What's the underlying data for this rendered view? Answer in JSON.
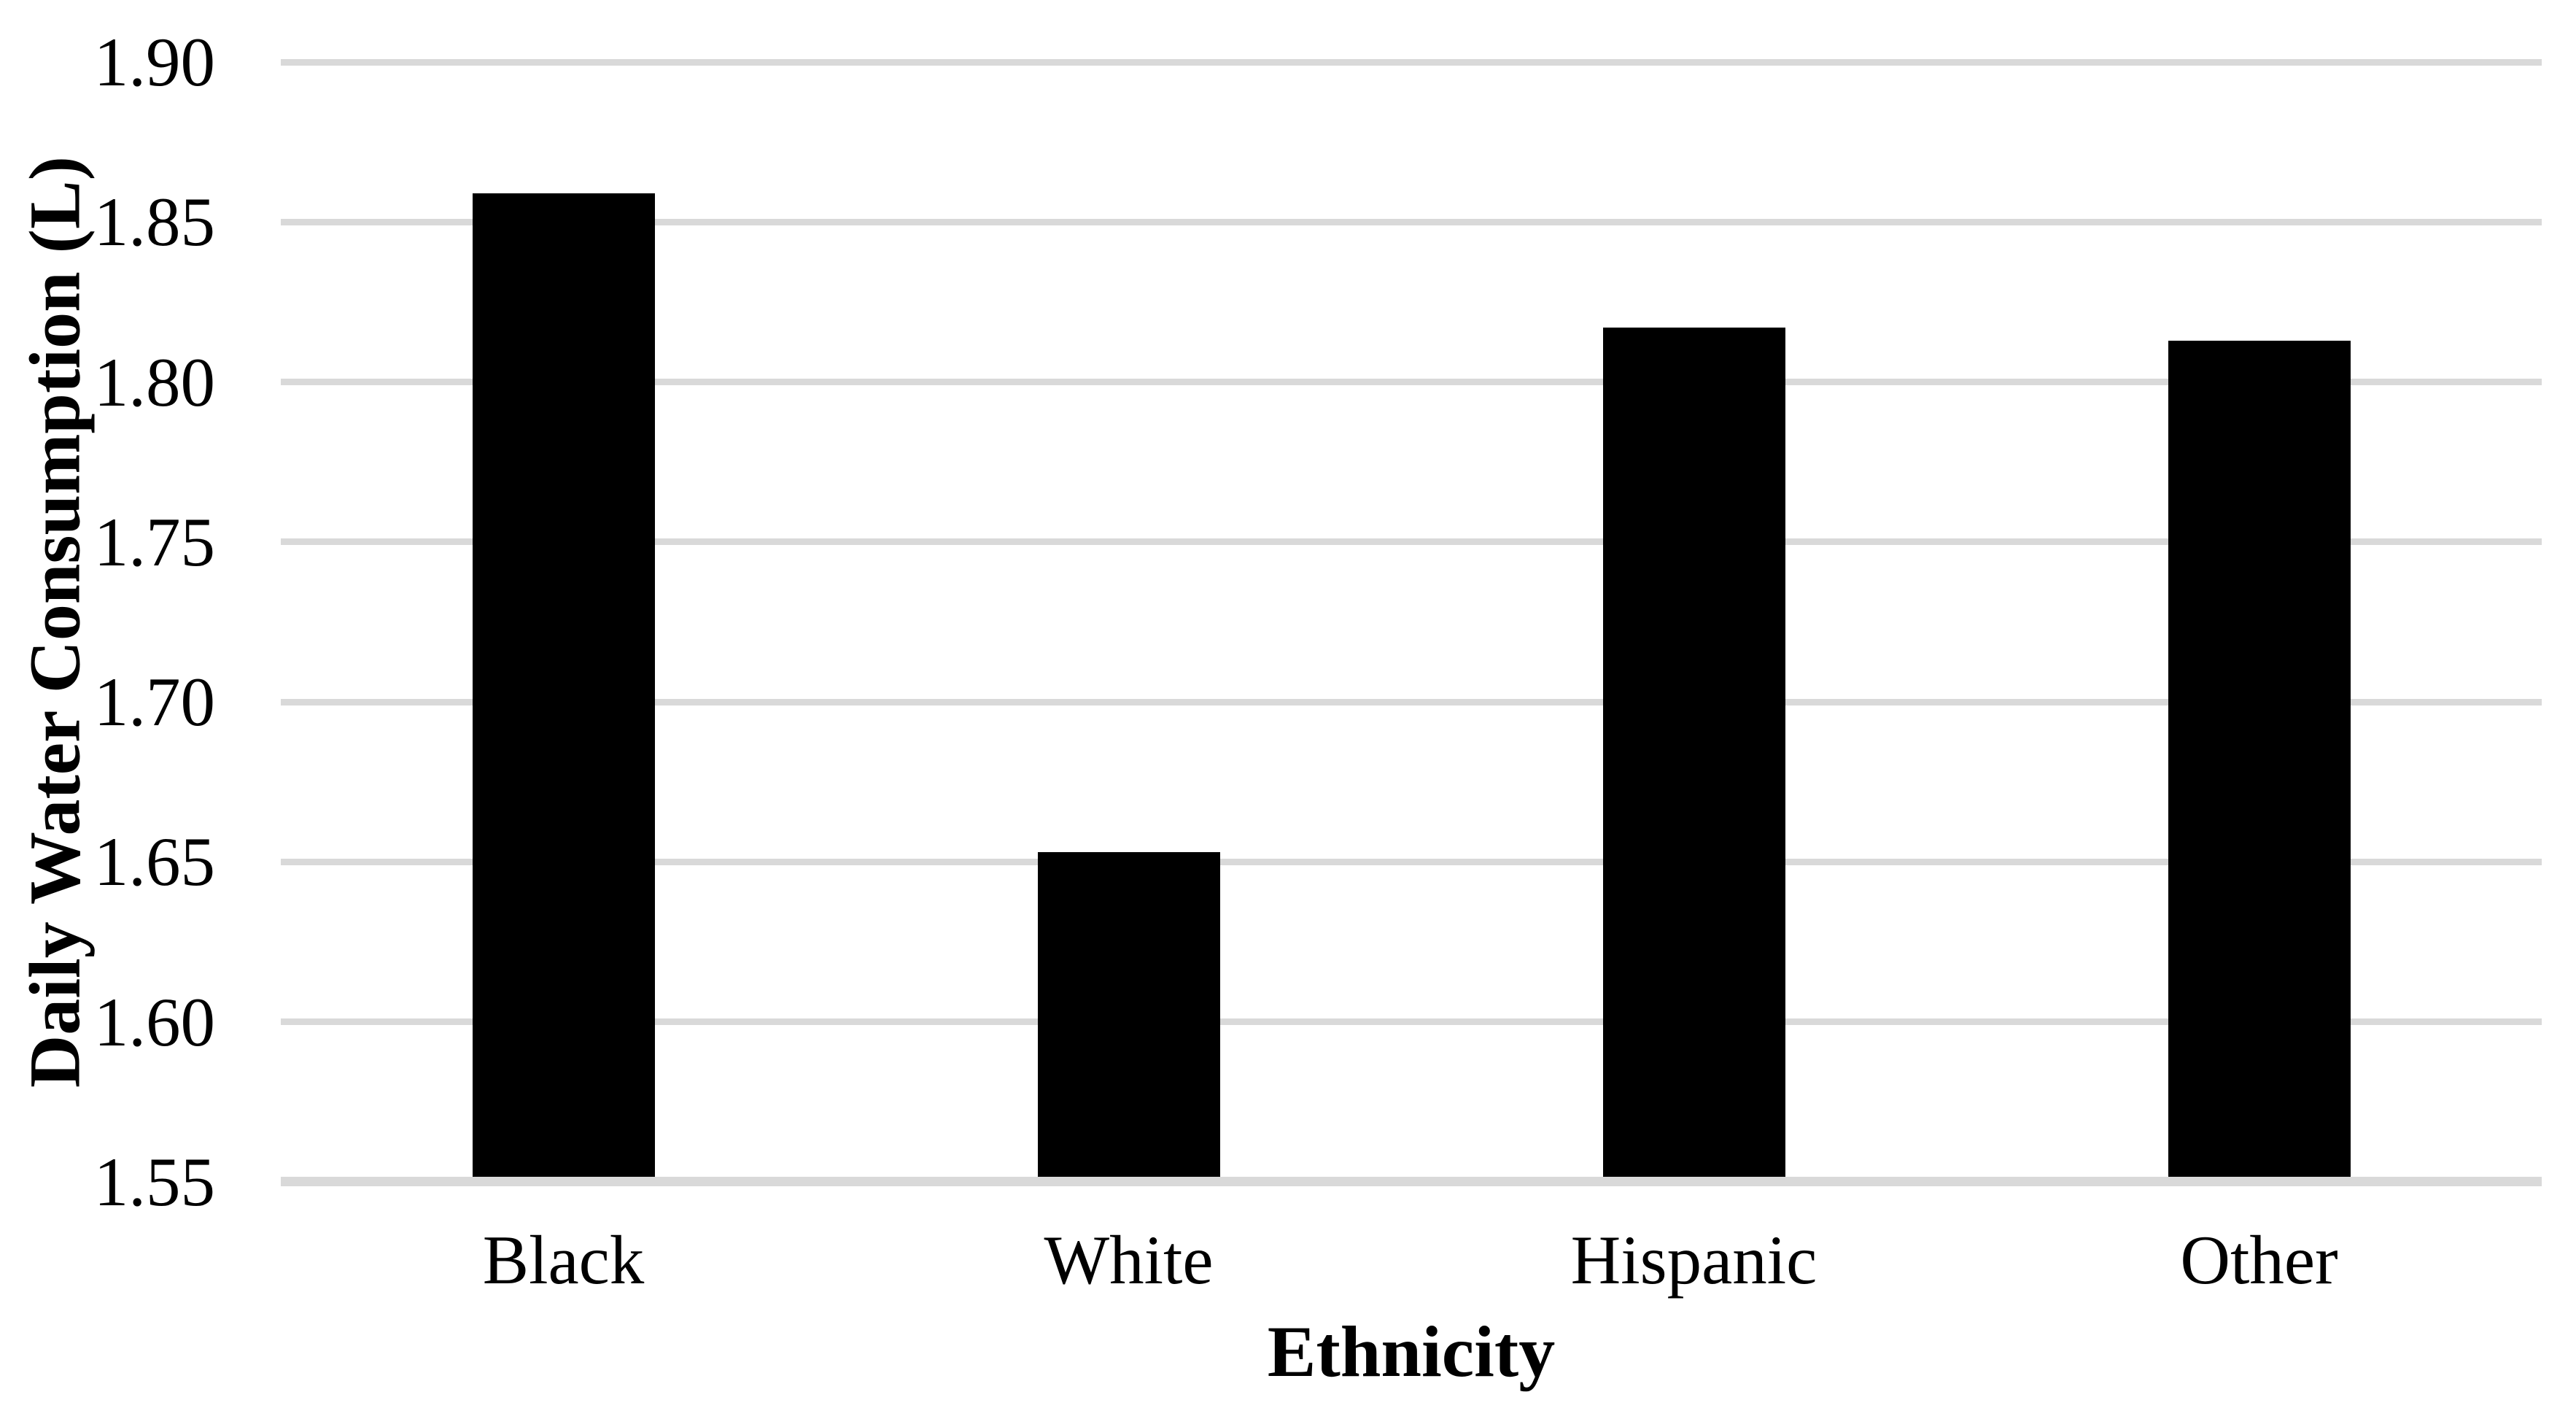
{
  "chart_data": {
    "type": "bar",
    "title": "",
    "categories": [
      "Black",
      "White",
      "Hispanic",
      "Other"
    ],
    "values": [
      1.859,
      1.653,
      1.817,
      1.813
    ],
    "xlabel": "Ethnicity",
    "ylabel": "Daily Water Consumption (L)",
    "ylim": [
      1.55,
      1.9
    ],
    "ytick_step": 0.05,
    "ytick_labels": [
      "1.55",
      "1.60",
      "1.65",
      "1.70",
      "1.75",
      "1.80",
      "1.85",
      "1.90"
    ],
    "legend_position": "none",
    "grid": "horizontal",
    "colors": {
      "bar": "#000000",
      "gridline": "#D9D9D9",
      "axis_line": "#D9D9D9",
      "text": "#000000",
      "background": "#FFFFFF"
    }
  }
}
